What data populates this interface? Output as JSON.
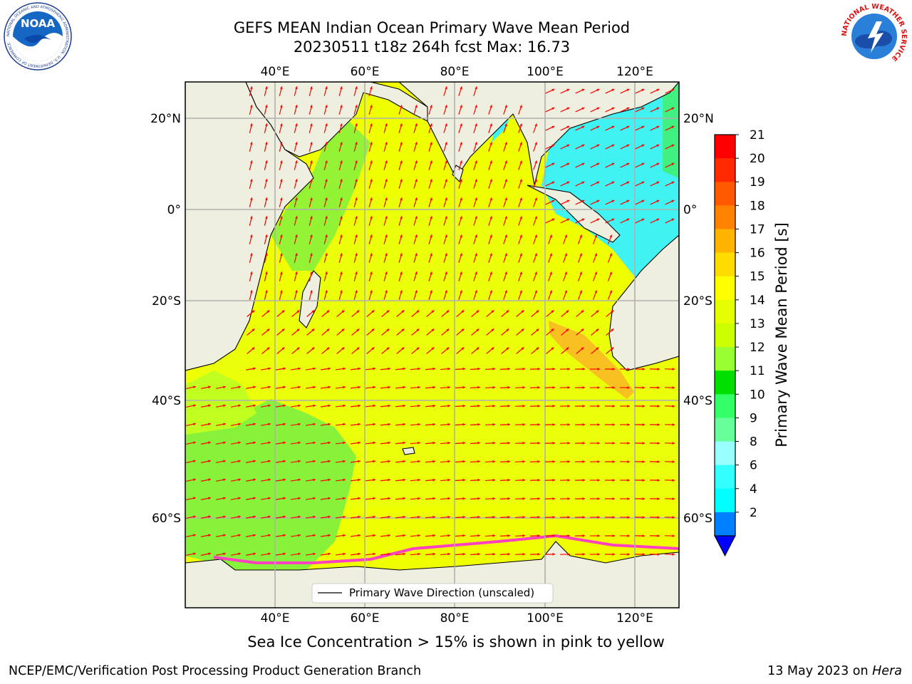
{
  "header": {
    "title_line1": "GEFS MEAN Indian Ocean Primary Wave Mean Period",
    "title_line2": "20230511 t18z 264h fcst   Max: 16.73"
  },
  "map": {
    "top_lon_labels": [
      "40°E",
      "60°E",
      "80°E",
      "100°E",
      "120°E"
    ],
    "bottom_lon_labels": [
      "40°E",
      "60°E",
      "80°E",
      "100°E",
      "120°E"
    ],
    "left_lat_labels": [
      "20°N",
      "0°",
      "20°S",
      "40°S",
      "60°S"
    ],
    "right_lat_labels": [
      "20°N",
      "0°",
      "20°S",
      "40°S",
      "60°S"
    ],
    "legend_label": "Primary Wave Direction (unscaled)"
  },
  "colorbar": {
    "label": "Primary Wave Mean Period [s]",
    "ticks": [
      "21",
      "20",
      "19",
      "18",
      "17",
      "16",
      "15",
      "14",
      "13",
      "12",
      "11",
      "10",
      "9",
      "8",
      "6",
      "4",
      "2"
    ],
    "colors": [
      "#ff0000",
      "#ff2a00",
      "#ff5a00",
      "#ff8200",
      "#ffb400",
      "#ffdc00",
      "#ffff00",
      "#e6ff00",
      "#ccff00",
      "#99ff33",
      "#00e000",
      "#33ff66",
      "#66ff99",
      "#99ffff",
      "#33ffff",
      "#00ffff",
      "#0080ff"
    ],
    "extend_color": "#0000ff"
  },
  "subtitle": "Sea Ice Concentration > 15% is shown in pink to yellow",
  "footer": {
    "left": "NCEP/EMC/Verification Post Processing Product Generation Branch",
    "right_prefix": "13 May 2023 on ",
    "right_italic": "Hera"
  },
  "logos": {
    "noaa_text": "NOAA",
    "noaa_ring_text": "NATIONAL OCEANIC AND ATMOSPHERIC ADMINISTRATION · U.S. DEPARTMENT OF COMMERCE",
    "nws_ring_text": "NATIONAL WEATHER SERVICE"
  },
  "colors": {
    "land": "#efefdf",
    "ocean_main": "#f0ff00",
    "ocean_green": "#88f23a",
    "ocean_cyan": "#40f2f2",
    "ocean_orange": "#f8c020",
    "arrow": "#ff0000",
    "ice_pink": "#ff40c0"
  }
}
